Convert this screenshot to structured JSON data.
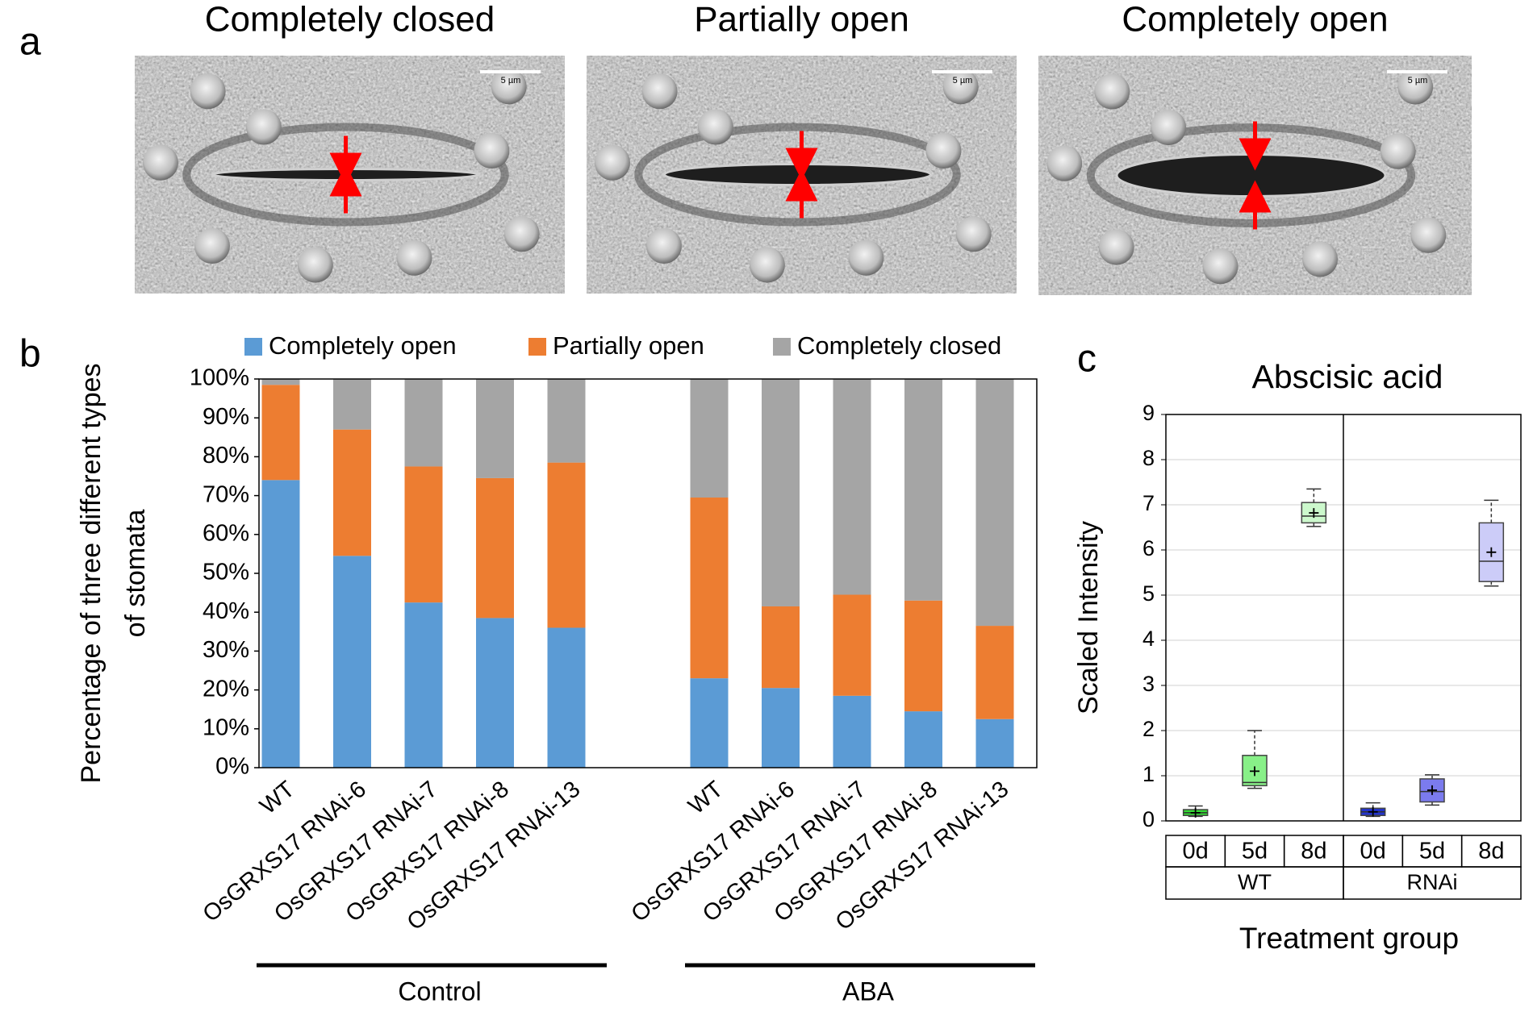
{
  "panel_a": {
    "label": "a",
    "images": [
      {
        "title": "Completely closed",
        "scale_bar": "5 µm"
      },
      {
        "title": "Partially open",
        "scale_bar": "5 µm"
      },
      {
        "title": "Completely open",
        "scale_bar": "5 µm"
      }
    ]
  },
  "chart_data": [
    {
      "type": "stacked_bar",
      "panel_label": "b",
      "ylabel": [
        "Percentage of three different types",
        "of stomata"
      ],
      "groups": [
        {
          "label": "Control",
          "categories": [
            "WT",
            "OsGRXS17 RNAi-6",
            "OsGRXS17 RNAi-7",
            "OsGRXS17 RNAi-8",
            "OsGRXS17 RNAi-13"
          ]
        },
        {
          "label": "ABA",
          "categories": [
            "WT",
            "OsGRXS17 RNAi-6",
            "OsGRXS17 RNAi-7",
            "OsGRXS17 RNAi-8",
            "OsGRXS17 RNAi-13"
          ]
        }
      ],
      "series": [
        {
          "name": "Completely open",
          "color": "#5b9bd5",
          "values": [
            74,
            54.5,
            42.5,
            38.5,
            36,
            23,
            20.5,
            18.5,
            14.5,
            12.5
          ]
        },
        {
          "name": "Partially open",
          "color": "#ed7d31",
          "values": [
            24.5,
            32.5,
            35,
            36,
            42.5,
            46.5,
            21,
            26,
            28.5,
            24
          ]
        },
        {
          "name": "Completely closed",
          "color": "#a5a5a5",
          "values": [
            1.5,
            13,
            22.5,
            25.5,
            21.5,
            30.5,
            58.5,
            55.5,
            57,
            63.5
          ]
        }
      ],
      "ylim": [
        0,
        100
      ],
      "yticks": [
        {
          "value": 0,
          "label": "0%"
        },
        {
          "value": 10,
          "label": "10%"
        },
        {
          "value": 20,
          "label": "20%"
        },
        {
          "value": 30,
          "label": "30%"
        },
        {
          "value": 40,
          "label": "40%"
        },
        {
          "value": 50,
          "label": "50%"
        },
        {
          "value": 60,
          "label": "60%"
        },
        {
          "value": 70,
          "label": "70%"
        },
        {
          "value": 80,
          "label": "80%"
        },
        {
          "value": 90,
          "label": "90%"
        },
        {
          "value": 100,
          "label": "100%"
        }
      ],
      "grid": false,
      "legend": "top"
    },
    {
      "type": "box",
      "panel_label": "c",
      "title": "Abscisic acid",
      "ylabel": "Scaled Intensity",
      "xlabel": "Treatment group",
      "ylim": [
        0,
        9
      ],
      "yticks": [
        0,
        1,
        2,
        3,
        4,
        5,
        6,
        7,
        8,
        9
      ],
      "grid": true,
      "groups": [
        {
          "label": "WT",
          "categories": [
            "0d",
            "5d",
            "8d"
          ],
          "boxes": [
            {
              "color": "#33dd33",
              "min": 0.1,
              "q1": 0.12,
              "median": 0.18,
              "q3": 0.25,
              "max": 0.33,
              "mean": 0.18
            },
            {
              "color": "#88f088",
              "min": 0.72,
              "q1": 0.78,
              "median": 0.85,
              "q3": 1.45,
              "max": 2.0,
              "mean": 1.1
            },
            {
              "color": "#ccf8cc",
              "min": 6.52,
              "q1": 6.6,
              "median": 6.75,
              "q3": 7.05,
              "max": 7.35,
              "mean": 6.82
            }
          ]
        },
        {
          "label": "RNAi",
          "categories": [
            "0d",
            "5d",
            "8d"
          ],
          "boxes": [
            {
              "color": "#2233cc",
              "min": 0.1,
              "q1": 0.12,
              "median": 0.2,
              "q3": 0.28,
              "max": 0.4,
              "mean": 0.2
            },
            {
              "color": "#7b7bee",
              "min": 0.35,
              "q1": 0.42,
              "median": 0.65,
              "q3": 0.93,
              "max": 1.02,
              "mean": 0.68
            },
            {
              "color": "#ccccf8",
              "min": 5.2,
              "q1": 5.3,
              "median": 5.75,
              "q3": 6.6,
              "max": 7.1,
              "mean": 5.95
            }
          ]
        }
      ]
    }
  ]
}
